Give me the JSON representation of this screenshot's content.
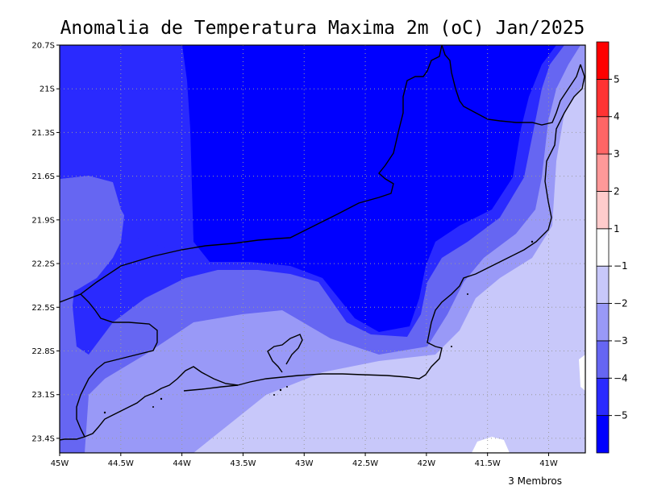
{
  "title": "Anomalia de Temperatura Maxima 2m (oC) Jan/2025",
  "footer": "3 Membros",
  "map": {
    "lon_range": [
      -45,
      -40.7
    ],
    "lat_range": [
      -23.5,
      -20.7
    ],
    "x_ticks": [
      {
        "value": -45,
        "label": "45W"
      },
      {
        "value": -44.5,
        "label": "44.5W"
      },
      {
        "value": -44,
        "label": "44W"
      },
      {
        "value": -43.5,
        "label": "43.5W"
      },
      {
        "value": -43,
        "label": "43W"
      },
      {
        "value": -42.5,
        "label": "42.5W"
      },
      {
        "value": -42,
        "label": "42W"
      },
      {
        "value": -41.5,
        "label": "41.5W"
      },
      {
        "value": -41,
        "label": "41W"
      }
    ],
    "y_ticks": [
      {
        "value": -20.7,
        "label": "20.7S"
      },
      {
        "value": -21.0,
        "label": "21S"
      },
      {
        "value": -21.3,
        "label": "21.3S"
      },
      {
        "value": -21.6,
        "label": "21.6S"
      },
      {
        "value": -21.9,
        "label": "21.9S"
      },
      {
        "value": -22.2,
        "label": "22.2S"
      },
      {
        "value": -22.5,
        "label": "22.5S"
      },
      {
        "value": -22.8,
        "label": "22.8S"
      },
      {
        "value": -23.1,
        "label": "23.1S"
      },
      {
        "value": -23.4,
        "label": "23.4S"
      }
    ],
    "grid": true
  },
  "colorbar": {
    "colors": [
      "#0000ff",
      "#2a2afe",
      "#6666f2",
      "#9999f7",
      "#c8c8fa",
      "#ffffff",
      "#ffcccc",
      "#ff9999",
      "#ff6666",
      "#ff3333",
      "#ff0000"
    ],
    "labels": [
      "−5",
      "−4",
      "−3",
      "−2",
      "−1",
      "1",
      "2",
      "3",
      "4",
      "5"
    ]
  }
}
